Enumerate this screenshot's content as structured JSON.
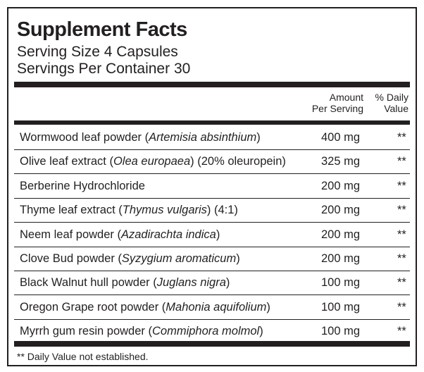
{
  "header": {
    "title": "Supplement Facts",
    "serving_size": "Serving Size 4 Capsules",
    "servings_per_container": "Servings Per Container 30"
  },
  "columns": {
    "amount": [
      "Amount",
      "Per Serving"
    ],
    "daily_value": [
      "% Daily",
      "Value"
    ]
  },
  "rows": [
    {
      "name": [
        {
          "text": "Wormwood leaf powder ("
        },
        {
          "text": "Artemisia absinthium",
          "italic": true
        },
        {
          "text": ")"
        }
      ],
      "amount": "400 mg",
      "dv": "**"
    },
    {
      "name": [
        {
          "text": "Olive leaf extract ("
        },
        {
          "text": "Olea europaea",
          "italic": true
        },
        {
          "text": ") (20% oleuropein)"
        }
      ],
      "amount": "325 mg",
      "dv": "**"
    },
    {
      "name": [
        {
          "text": "Berberine Hydrochloride"
        }
      ],
      "amount": "200 mg",
      "dv": "**"
    },
    {
      "name": [
        {
          "text": "Thyme leaf extract ("
        },
        {
          "text": "Thymus vulgaris",
          "italic": true
        },
        {
          "text": ") (4:1)"
        }
      ],
      "amount": "200 mg",
      "dv": "**"
    },
    {
      "name": [
        {
          "text": "Neem leaf powder ("
        },
        {
          "text": "Azadirachta indica",
          "italic": true
        },
        {
          "text": ")"
        }
      ],
      "amount": "200 mg",
      "dv": "**"
    },
    {
      "name": [
        {
          "text": "Clove Bud powder ("
        },
        {
          "text": "Syzygium aromaticum",
          "italic": true
        },
        {
          "text": ")"
        }
      ],
      "amount": "200 mg",
      "dv": "**"
    },
    {
      "name": [
        {
          "text": "Black Walnut hull powder ("
        },
        {
          "text": "Juglans nigra",
          "italic": true
        },
        {
          "text": ")"
        }
      ],
      "amount": "100 mg",
      "dv": "**"
    },
    {
      "name": [
        {
          "text": "Oregon Grape root powder ("
        },
        {
          "text": "Mahonia aquifolium",
          "italic": true
        },
        {
          "text": ")"
        }
      ],
      "amount": "100 mg",
      "dv": "**"
    },
    {
      "name": [
        {
          "text": "Myrrh gum resin powder ("
        },
        {
          "text": "Commiphora molmol",
          "italic": true
        },
        {
          "text": ")"
        }
      ],
      "amount": "100 mg",
      "dv": "**"
    }
  ],
  "footnote": "** Daily Value not established."
}
